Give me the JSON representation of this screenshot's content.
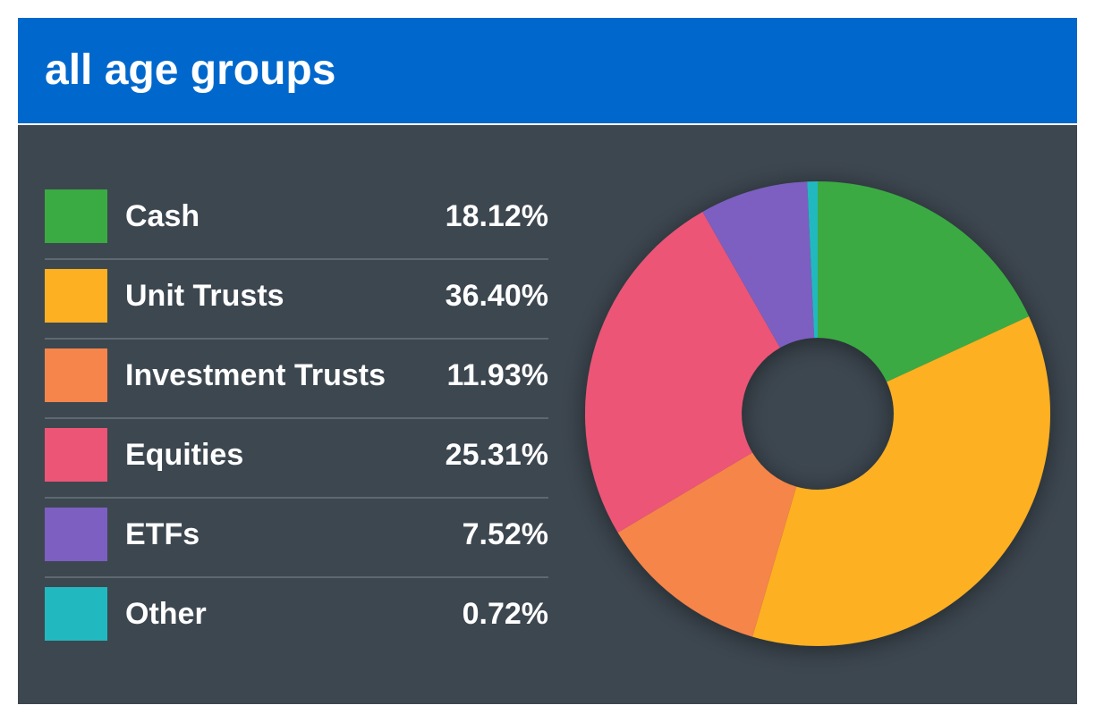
{
  "header": {
    "title": "all age groups"
  },
  "colors": {
    "header_bg": "#0068cc",
    "panel_bg": "#3d4750"
  },
  "chart_data": {
    "type": "pie",
    "donut": true,
    "categories": [
      "Cash",
      "Unit Trusts",
      "Investment Trusts",
      "Equities",
      "ETFs",
      "Other"
    ],
    "values": [
      18.12,
      36.4,
      11.93,
      25.31,
      7.52,
      0.72
    ],
    "value_labels": [
      "18.12%",
      "36.40%",
      "11.93%",
      "25.31%",
      "7.52%",
      "0.72%"
    ],
    "colors": [
      "#3aaa42",
      "#fdb022",
      "#f5854a",
      "#ec5576",
      "#7c5fc1",
      "#22b8bf"
    ],
    "legend": "left",
    "title": ""
  }
}
